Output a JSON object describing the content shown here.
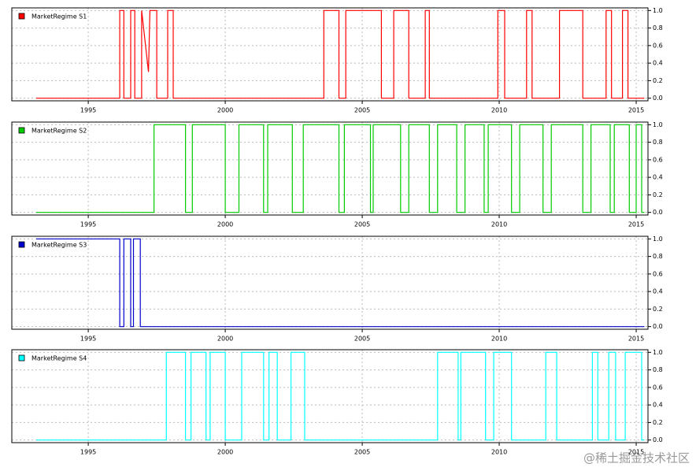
{
  "chart_data": [
    {
      "type": "line",
      "x": [
        1993.1,
        1996.15,
        1996.15,
        1996.3,
        1996.3,
        1996.55,
        1996.55,
        1996.7,
        1996.7,
        1996.95,
        1996.95,
        1997.2,
        1997.25,
        1997.5,
        1997.5,
        1997.9,
        1997.9,
        1998.1,
        1998.1,
        2003.6,
        2003.6,
        2004.15,
        2004.15,
        2004.4,
        2004.4,
        2005.7,
        2005.7,
        2006.15,
        2006.15,
        2006.7,
        2006.7,
        2007.3,
        2007.3,
        2007.45,
        2007.45,
        2009.95,
        2009.95,
        2010.2,
        2010.2,
        2011.0,
        2011.0,
        2011.2,
        2011.2,
        2012.2,
        2012.2,
        2013.05,
        2013.05,
        2013.9,
        2013.9,
        2014.1,
        2014.1,
        2014.5,
        2014.5,
        2014.7,
        2014.7,
        2015.3
      ],
      "series": [
        {
          "name": "MarketRegime S1",
          "color": "#ff0000",
          "values": [
            0,
            0,
            1,
            1,
            0,
            0,
            1,
            1,
            0,
            0,
            1,
            0.3,
            1,
            1,
            0,
            0,
            1,
            1,
            0,
            0,
            1,
            1,
            0,
            0,
            1,
            1,
            0,
            0,
            1,
            1,
            0,
            0,
            1,
            1,
            0,
            0,
            1,
            1,
            0,
            0,
            1,
            1,
            0,
            0,
            1,
            1,
            0,
            0,
            1,
            1,
            0,
            0,
            1,
            1,
            0,
            0
          ]
        }
      ],
      "xlim": [
        1992.21,
        2015.43
      ],
      "xticks": [
        1995,
        2000,
        2005,
        2010,
        2015
      ],
      "ylim": [
        -0.03,
        1.03
      ],
      "yticks": [
        {
          "value": 0,
          "label": "0.0"
        },
        0.2,
        0.4,
        0.6,
        0.8,
        {
          "value": 1,
          "label": "1.0"
        }
      ],
      "grid": true
    },
    {
      "type": "line",
      "x": [
        1993.1,
        1997.4,
        1997.4,
        1998.55,
        1998.55,
        1998.8,
        1998.8,
        2000.0,
        2000.0,
        2000.5,
        2000.5,
        2001.4,
        2001.4,
        2001.55,
        2001.55,
        2002.45,
        2002.45,
        2002.85,
        2002.85,
        2004.15,
        2004.15,
        2004.35,
        2004.35,
        2005.3,
        2005.3,
        2005.4,
        2005.4,
        2006.4,
        2006.4,
        2006.7,
        2006.7,
        2007.45,
        2007.45,
        2007.75,
        2007.75,
        2008.45,
        2008.45,
        2008.75,
        2008.75,
        2009.45,
        2009.45,
        2009.6,
        2009.6,
        2010.45,
        2010.45,
        2010.75,
        2010.75,
        2011.6,
        2011.6,
        2011.9,
        2011.9,
        2013.05,
        2013.05,
        2013.35,
        2013.35,
        2014.05,
        2014.05,
        2014.2,
        2014.2,
        2014.75,
        2014.75,
        2015.0,
        2015.0,
        2015.2,
        2015.2,
        2015.3
      ],
      "series": [
        {
          "name": "MarketRegime S2",
          "color": "#00cc00",
          "values": [
            0,
            0,
            1,
            1,
            0,
            0,
            1,
            1,
            0,
            0,
            1,
            1,
            0,
            0,
            1,
            1,
            0,
            0,
            1,
            1,
            0,
            0,
            1,
            1,
            0,
            0,
            1,
            1,
            0,
            0,
            1,
            1,
            0,
            0,
            1,
            1,
            0,
            0,
            1,
            1,
            0,
            0,
            1,
            1,
            0,
            0,
            1,
            1,
            0,
            0,
            1,
            1,
            0,
            0,
            1,
            1,
            0,
            0,
            1,
            1,
            0,
            0,
            1,
            1,
            0,
            0
          ]
        }
      ],
      "xlim": [
        1992.21,
        2015.43
      ],
      "xticks": [
        1995,
        2000,
        2005,
        2010,
        2015
      ],
      "ylim": [
        -0.03,
        1.03
      ],
      "yticks": [
        {
          "value": 0,
          "label": "0.0"
        },
        0.2,
        0.4,
        0.6,
        0.8,
        {
          "value": 1,
          "label": "1.0"
        }
      ],
      "grid": true
    },
    {
      "type": "line",
      "x": [
        1993.1,
        1996.15,
        1996.15,
        1996.3,
        1996.3,
        1996.55,
        1996.55,
        1996.65,
        1996.65,
        1996.9,
        1996.9,
        2015.3
      ],
      "series": [
        {
          "name": "MarketRegime S3",
          "color": "#0000cc",
          "values": [
            1,
            1,
            0,
            0,
            1,
            1,
            0,
            0,
            1,
            1,
            0,
            0
          ]
        }
      ],
      "xlim": [
        1992.21,
        2015.43
      ],
      "xticks": [
        1995,
        2000,
        2005,
        2010,
        2015
      ],
      "ylim": [
        -0.03,
        1.03
      ],
      "yticks": [
        {
          "value": 0,
          "label": "0.0"
        },
        0.2,
        0.4,
        0.6,
        0.8,
        {
          "value": 1,
          "label": "1.0"
        }
      ],
      "grid": true
    },
    {
      "type": "line",
      "x": [
        1993.1,
        1997.85,
        1997.85,
        1998.55,
        1998.55,
        1998.75,
        1998.75,
        1999.3,
        1999.3,
        1999.45,
        1999.45,
        2000.0,
        2000.0,
        2000.6,
        2000.6,
        2001.4,
        2001.4,
        2001.6,
        2001.6,
        2001.9,
        2001.9,
        2002.4,
        2002.4,
        2002.9,
        2002.9,
        2007.75,
        2007.75,
        2008.5,
        2008.5,
        2008.6,
        2008.6,
        2009.5,
        2009.5,
        2009.8,
        2009.8,
        2010.45,
        2010.45,
        2011.7,
        2011.7,
        2012.1,
        2012.1,
        2013.4,
        2013.4,
        2013.6,
        2013.6,
        2014.0,
        2014.0,
        2014.25,
        2014.25,
        2014.6,
        2014.6,
        2015.2,
        2015.2,
        2015.3
      ],
      "series": [
        {
          "name": "MarketRegime S4",
          "color": "#00ffff",
          "values": [
            0,
            0,
            1,
            1,
            0,
            0,
            1,
            1,
            0,
            0,
            1,
            1,
            0,
            0,
            1,
            1,
            0,
            0,
            1,
            1,
            0,
            0,
            1,
            1,
            0,
            0,
            1,
            1,
            0,
            0,
            1,
            1,
            0,
            0,
            1,
            1,
            0,
            0,
            1,
            1,
            0,
            0,
            1,
            1,
            0,
            0,
            1,
            1,
            0,
            0,
            1,
            1,
            0,
            0
          ]
        }
      ],
      "xlim": [
        1992.21,
        2015.43
      ],
      "xticks": [
        1995,
        2000,
        2005,
        2010,
        2015
      ],
      "ylim": [
        -0.03,
        1.03
      ],
      "yticks": [
        {
          "value": 0,
          "label": "0.0"
        },
        0.2,
        0.4,
        0.6,
        0.8,
        {
          "value": 1,
          "label": "1.0"
        }
      ],
      "grid": true
    }
  ],
  "watermark": "@稀土掘金技术社区"
}
